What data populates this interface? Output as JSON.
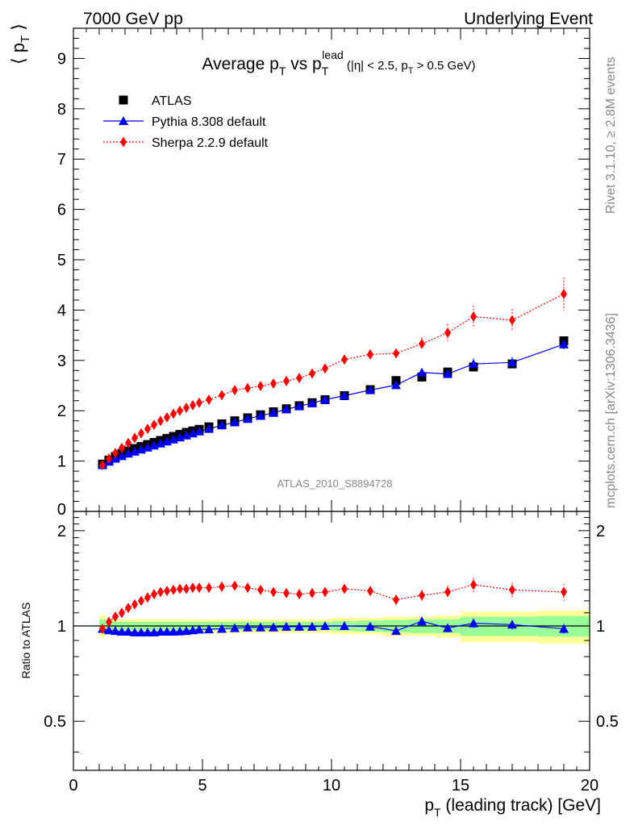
{
  "header": {
    "left": "7000 GeV pp",
    "right": "Underlying Event"
  },
  "side_labels": {
    "top": "Rivet 3.1.10, ≥ 2.8M events",
    "bottom": "mcplots.cern.ch [arXiv:1306.3436]"
  },
  "watermark": "ATLAS_2010_S8894728",
  "title": {
    "a": "Average p",
    "a_sub": "T",
    "b": " vs p",
    "b_sub": "T",
    "b_sup": "lead",
    "c": " (|η| < 2.5, p",
    "c_sub": "T",
    "d": " > 0.5 GeV)"
  },
  "axes": {
    "xlabel_main": "p",
    "xlabel_sub": "T",
    "xlabel_rest": " (leading track) [GeV]",
    "ylabel": "〈 pᴛ 〉",
    "ratio_ylabel": "Ratio to ATLAS"
  },
  "chart_data": {
    "type": "scatter",
    "xlim": [
      0,
      20
    ],
    "ylim": [
      0,
      9.6
    ],
    "ratio_ylim": [
      0.35,
      2.3
    ],
    "ratio_log": true,
    "xticks": [
      0,
      5,
      10,
      15,
      20
    ],
    "yticks": [
      1,
      2,
      3,
      4,
      5,
      6,
      7,
      8,
      9
    ],
    "ratio_ticks": [
      0.5,
      1,
      2
    ],
    "legend_position": "top-left",
    "x": [
      1.125,
      1.375,
      1.625,
      1.875,
      2.125,
      2.375,
      2.625,
      2.875,
      3.125,
      3.375,
      3.625,
      3.875,
      4.125,
      4.375,
      4.625,
      4.875,
      5.25,
      5.75,
      6.25,
      6.75,
      7.25,
      7.75,
      8.25,
      8.75,
      9.25,
      9.75,
      10.5,
      11.5,
      12.5,
      13.5,
      14.5,
      15.5,
      17.0,
      19.0
    ],
    "series": [
      {
        "name": "ATLAS",
        "color": "#000000",
        "marker": "square",
        "values": [
          0.94,
          1.02,
          1.09,
          1.15,
          1.2,
          1.25,
          1.29,
          1.33,
          1.37,
          1.41,
          1.45,
          1.49,
          1.53,
          1.57,
          1.6,
          1.63,
          1.68,
          1.74,
          1.8,
          1.86,
          1.92,
          1.98,
          2.04,
          2.1,
          2.16,
          2.22,
          2.3,
          2.42,
          2.6,
          2.67,
          2.77,
          2.87,
          2.93,
          3.39
        ]
      },
      {
        "name": "Pythia 8.308 default",
        "color": "#0000ff",
        "marker": "triangle",
        "values": [
          0.92,
          0.99,
          1.05,
          1.1,
          1.15,
          1.19,
          1.23,
          1.27,
          1.31,
          1.35,
          1.39,
          1.43,
          1.47,
          1.51,
          1.55,
          1.59,
          1.64,
          1.71,
          1.77,
          1.84,
          1.9,
          1.96,
          2.03,
          2.09,
          2.15,
          2.22,
          2.3,
          2.41,
          2.51,
          2.76,
          2.73,
          2.93,
          2.96,
          3.32
        ]
      },
      {
        "name": "Sherpa 2.2.9 default",
        "color": "#ff0000",
        "marker": "diamond",
        "values": [
          0.92,
          1.05,
          1.16,
          1.26,
          1.36,
          1.46,
          1.55,
          1.64,
          1.72,
          1.8,
          1.87,
          1.94,
          2.0,
          2.06,
          2.11,
          2.16,
          2.22,
          2.31,
          2.41,
          2.45,
          2.49,
          2.54,
          2.59,
          2.65,
          2.74,
          2.84,
          3.02,
          3.12,
          3.14,
          3.33,
          3.55,
          3.87,
          3.8,
          4.32
        ]
      }
    ],
    "errors": {
      "Sherpa 2.2.9 default": [
        0.01,
        0.01,
        0.01,
        0.01,
        0.01,
        0.01,
        0.01,
        0.01,
        0.01,
        0.01,
        0.01,
        0.01,
        0.01,
        0.01,
        0.02,
        0.02,
        0.02,
        0.02,
        0.03,
        0.03,
        0.03,
        0.04,
        0.04,
        0.05,
        0.05,
        0.06,
        0.07,
        0.08,
        0.09,
        0.13,
        0.17,
        0.22,
        0.22,
        0.33
      ],
      "Pythia 8.308 default": [
        0.01,
        0.01,
        0.01,
        0.01,
        0.01,
        0.01,
        0.01,
        0.01,
        0.01,
        0.01,
        0.01,
        0.01,
        0.01,
        0.01,
        0.01,
        0.01,
        0.02,
        0.02,
        0.02,
        0.02,
        0.03,
        0.03,
        0.03,
        0.03,
        0.04,
        0.04,
        0.04,
        0.05,
        0.06,
        0.08,
        0.07,
        0.11,
        0.11,
        0.1
      ]
    },
    "ratio": {
      "Pythia 8.308 default": [
        0.98,
        0.97,
        0.965,
        0.96,
        0.96,
        0.955,
        0.955,
        0.955,
        0.955,
        0.96,
        0.96,
        0.96,
        0.962,
        0.965,
        0.97,
        0.975,
        0.976,
        0.98,
        0.985,
        0.99,
        0.99,
        0.99,
        0.995,
        0.995,
        0.995,
        1.0,
        1.0,
        0.996,
        0.965,
        1.035,
        0.985,
        1.02,
        1.01,
        0.98
      ],
      "Sherpa 2.2.9 default": [
        0.98,
        1.03,
        1.07,
        1.1,
        1.14,
        1.17,
        1.2,
        1.23,
        1.26,
        1.28,
        1.29,
        1.3,
        1.31,
        1.31,
        1.32,
        1.32,
        1.32,
        1.33,
        1.34,
        1.32,
        1.3,
        1.28,
        1.27,
        1.26,
        1.27,
        1.28,
        1.31,
        1.29,
        1.21,
        1.25,
        1.28,
        1.35,
        1.3,
        1.28
      ]
    },
    "ratio_errors": {
      "Sherpa 2.2.9 default": [
        0.01,
        0.01,
        0.01,
        0.01,
        0.01,
        0.01,
        0.01,
        0.01,
        0.01,
        0.01,
        0.01,
        0.01,
        0.01,
        0.01,
        0.01,
        0.01,
        0.01,
        0.01,
        0.02,
        0.02,
        0.02,
        0.02,
        0.02,
        0.02,
        0.02,
        0.02,
        0.03,
        0.03,
        0.04,
        0.05,
        0.06,
        0.07,
        0.07,
        0.08
      ],
      "Pythia 8.308 default": [
        0.005,
        0.005,
        0.005,
        0.005,
        0.005,
        0.005,
        0.005,
        0.005,
        0.005,
        0.005,
        0.005,
        0.005,
        0.005,
        0.005,
        0.005,
        0.005,
        0.01,
        0.01,
        0.01,
        0.01,
        0.01,
        0.01,
        0.01,
        0.01,
        0.01,
        0.01,
        0.015,
        0.015,
        0.02,
        0.03,
        0.025,
        0.035,
        0.035,
        0.035
      ]
    },
    "ratio_bands": {
      "x_low": [
        1.0,
        1.25,
        1.5,
        1.75,
        2.0,
        2.25,
        2.5,
        2.75,
        3.0,
        3.25,
        3.5,
        3.75,
        4.0,
        4.25,
        4.5,
        4.75,
        5.0,
        5.5,
        6.0,
        6.5,
        7.0,
        7.5,
        8.0,
        8.5,
        9.0,
        9.5,
        10.0,
        11.0,
        12.0,
        13.0,
        14.0,
        15.0,
        16.0,
        18.0
      ],
      "x_high": [
        1.25,
        1.5,
        1.75,
        2.0,
        2.25,
        2.5,
        2.75,
        3.0,
        3.25,
        3.5,
        3.75,
        4.0,
        4.25,
        4.5,
        4.75,
        5.0,
        5.5,
        6.0,
        6.5,
        7.0,
        7.5,
        8.0,
        8.5,
        9.0,
        9.5,
        10.0,
        11.0,
        12.0,
        13.0,
        14.0,
        15.0,
        16.0,
        18.0,
        20.0
      ],
      "stat": [
        0.05,
        0.03,
        0.03,
        0.03,
        0.03,
        0.03,
        0.03,
        0.03,
        0.03,
        0.03,
        0.03,
        0.03,
        0.03,
        0.03,
        0.03,
        0.03,
        0.03,
        0.03,
        0.03,
        0.03,
        0.03,
        0.03,
        0.03,
        0.03,
        0.03,
        0.03,
        0.035,
        0.04,
        0.045,
        0.05,
        0.05,
        0.07,
        0.07,
        0.075
      ],
      "total": [
        0.08,
        0.05,
        0.05,
        0.05,
        0.05,
        0.05,
        0.05,
        0.05,
        0.05,
        0.05,
        0.05,
        0.05,
        0.05,
        0.05,
        0.05,
        0.05,
        0.05,
        0.05,
        0.05,
        0.05,
        0.05,
        0.05,
        0.05,
        0.05,
        0.05,
        0.05,
        0.06,
        0.06,
        0.07,
        0.07,
        0.08,
        0.11,
        0.11,
        0.12
      ],
      "stat_color": "#99ff99",
      "total_color": "#ffff99"
    }
  }
}
